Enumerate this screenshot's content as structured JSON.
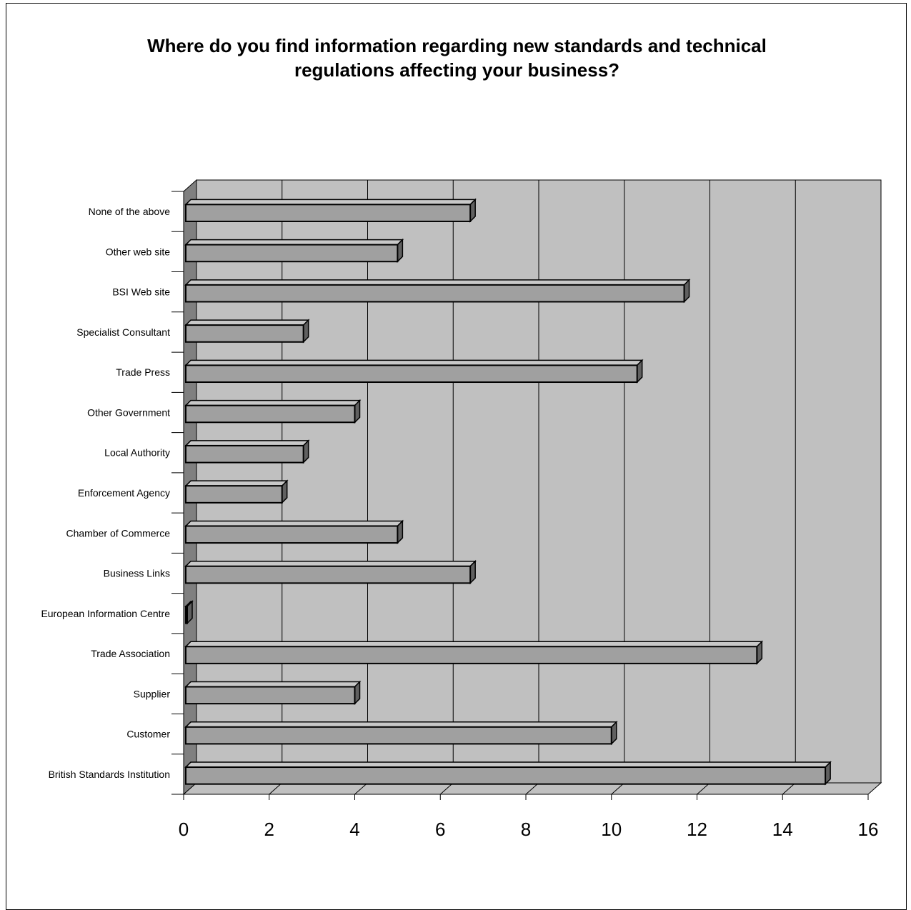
{
  "chart_data": {
    "type": "bar",
    "orientation": "horizontal",
    "title_lines": [
      "Where do you find information regarding new standards and technical",
      "regulations affecting your business?"
    ],
    "xlabel": "",
    "ylabel": "",
    "categories": [
      "British Standards Institution",
      "Customer",
      "Supplier",
      "Trade Association",
      "European Information Centre",
      "Business Links",
      "Chamber of Commerce",
      "Enforcement Agency",
      "Local Authority",
      "Other Government",
      "Trade Press",
      "Specialist Consultant",
      "BSI Web site",
      "Other web site",
      "None of the above"
    ],
    "values": [
      15,
      10,
      4,
      13.4,
      0,
      6.7,
      5,
      2.3,
      2.8,
      4,
      10.6,
      2.8,
      11.7,
      5,
      6.7
    ],
    "xlim": [
      0,
      16
    ],
    "x_ticks": [
      "0",
      "2",
      "4",
      "6",
      "8",
      "10",
      "12",
      "14",
      "16"
    ],
    "grid": true,
    "legend": "none",
    "colors": {
      "plot_back": "#c0c0c0",
      "side_wall": "#808080",
      "bar_front": "#a0a0a0",
      "bar_top": "#c8c8c8",
      "bar_side": "#606060",
      "floor": "#c0c0c0"
    }
  }
}
